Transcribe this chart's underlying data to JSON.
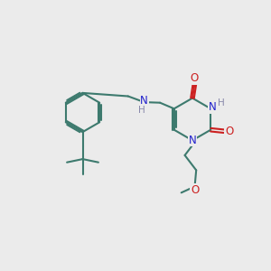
{
  "background_color": "#ebebeb",
  "bond_color": "#3d7a6e",
  "n_color": "#2020cc",
  "o_color": "#cc2020",
  "h_color": "#8888aa",
  "figsize": [
    3.0,
    3.0
  ],
  "dpi": 100,
  "lw": 1.5,
  "fs": 8.5,
  "fs_small": 7.5,
  "xlim": [
    0,
    10
  ],
  "ylim": [
    0,
    10
  ]
}
